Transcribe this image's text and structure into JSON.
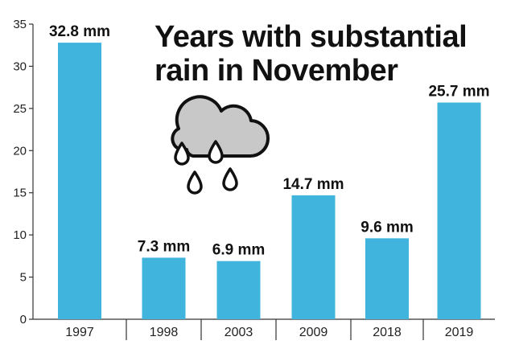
{
  "chart_data": {
    "type": "bar",
    "title_lines": [
      "Years with substantial",
      "rain in November"
    ],
    "categories": [
      "1997",
      "1998",
      "2003",
      "2009",
      "2018",
      "2019"
    ],
    "values": [
      32.8,
      7.3,
      6.9,
      14.7,
      9.6,
      25.7
    ],
    "data_labels": [
      "32.8 mm",
      "7.3 mm",
      "6.9 mm",
      "14.7 mm",
      "9.6 mm",
      "25.7 mm"
    ],
    "yticks": [
      "0",
      "5",
      "10",
      "15",
      "20",
      "25",
      "30",
      "35"
    ],
    "ylim": [
      0,
      35
    ],
    "xlabel": "",
    "ylabel": "",
    "grid": false,
    "bar_color": "#40b4dc",
    "icon": "rain-cloud-icon"
  }
}
